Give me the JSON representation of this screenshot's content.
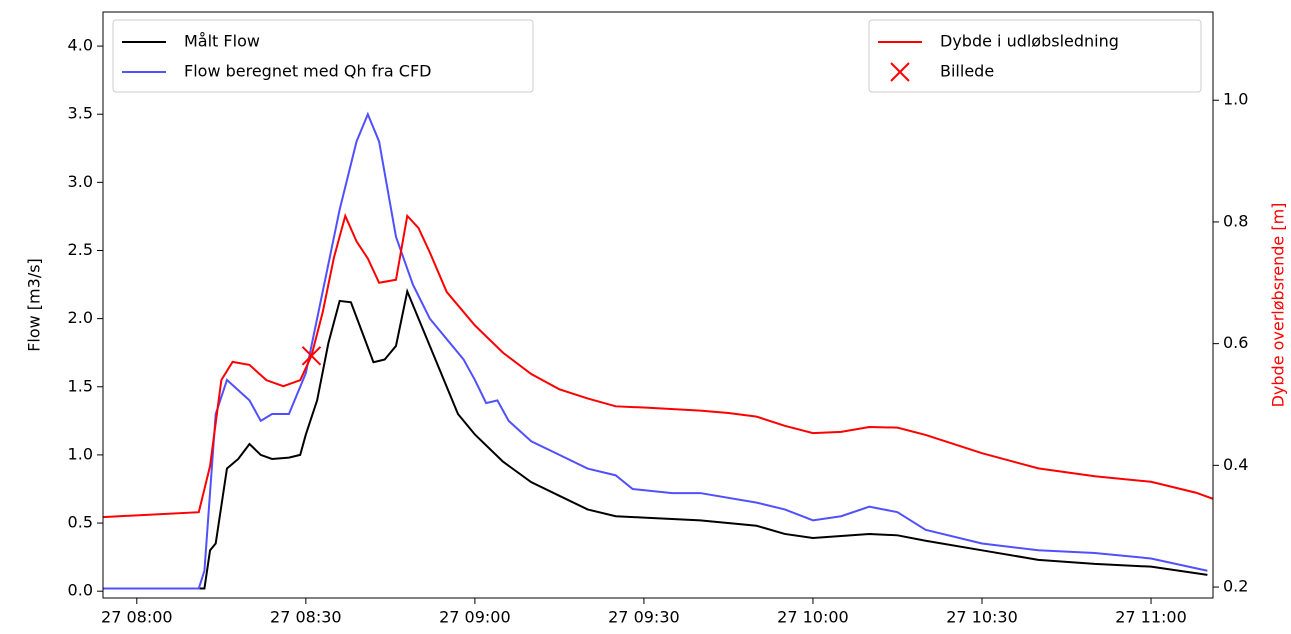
{
  "chart_data": {
    "type": "line",
    "ylabel": "Flow [m3/s]",
    "y2label": "Dybde overløbsrende [m]",
    "xlim": [
      "27 07:54",
      "27 11:11"
    ],
    "xticks": [
      "27 08:00",
      "27 08:30",
      "27 09:00",
      "27 09:30",
      "27 10:00",
      "27 10:30",
      "27 11:00"
    ],
    "ylim": [
      -0.05,
      4.25
    ],
    "yticks": [
      {
        "value": 0,
        "label": "0.0"
      },
      {
        "value": 0.5,
        "label": "0.5"
      },
      {
        "value": 1,
        "label": "1.0"
      },
      {
        "value": 1.5,
        "label": "1.5"
      },
      {
        "value": 2,
        "label": "2.0"
      },
      {
        "value": 2.5,
        "label": "2.5"
      },
      {
        "value": 3,
        "label": "3.0"
      },
      {
        "value": 3.5,
        "label": "3.5"
      },
      {
        "value": 4,
        "label": "4.0"
      }
    ],
    "y2lim": [
      0.182,
      1.145
    ],
    "y2ticks": [
      0.2,
      0.4,
      0.6,
      0.8,
      {
        "value": 1,
        "label": "1.0"
      }
    ],
    "y2color": "#ff0000",
    "legend": {
      "y": "upper left",
      "y2": "upper right"
    },
    "series": [
      {
        "name": "Målt Flow",
        "color": "#000000",
        "axis": "y",
        "x": [
          "27 07:54",
          "27 08:12",
          "27 08:13",
          "27 08:14",
          "27 08:16",
          "27 08:18",
          "27 08:20",
          "27 08:22",
          "27 08:24",
          "27 08:27",
          "27 08:29",
          "27 08:30",
          "27 08:32",
          "27 08:34",
          "27 08:36",
          "27 08:38",
          "27 08:40",
          "27 08:42",
          "27 08:44",
          "27 08:46",
          "27 08:48",
          "27 08:50",
          "27 08:52",
          "27 08:54",
          "27 08:57",
          "27 09:00",
          "27 09:05",
          "27 09:10",
          "27 09:15",
          "27 09:20",
          "27 09:25",
          "27 09:30",
          "27 09:40",
          "27 09:50",
          "27 09:55",
          "27 10:00",
          "27 10:10",
          "27 10:15",
          "27 10:20",
          "27 10:30",
          "27 10:40",
          "27 10:50",
          "27 11:00",
          "27 11:10"
        ],
        "values": [
          0.02,
          0.02,
          0.3,
          0.35,
          0.9,
          0.97,
          1.08,
          1.0,
          0.97,
          0.98,
          1.0,
          1.15,
          1.4,
          1.82,
          2.13,
          2.12,
          1.9,
          1.68,
          1.7,
          1.8,
          2.2,
          2.0,
          1.8,
          1.6,
          1.3,
          1.15,
          0.95,
          0.8,
          0.7,
          0.6,
          0.55,
          0.54,
          0.52,
          0.48,
          0.42,
          0.39,
          0.42,
          0.41,
          0.37,
          0.3,
          0.23,
          0.2,
          0.18,
          0.12
        ]
      },
      {
        "name": "Flow beregnet med Qh fra CFD",
        "color": "#5050ff",
        "axis": "y",
        "x": [
          "27 07:54",
          "27 08:11",
          "27 08:12",
          "27 08:14",
          "27 08:16",
          "27 08:20",
          "27 08:22",
          "27 08:24",
          "27 08:27",
          "27 08:30",
          "27 08:33",
          "27 08:36",
          "27 08:39",
          "27 08:41",
          "27 08:43",
          "27 08:46",
          "27 08:49",
          "27 08:52",
          "27 08:55",
          "27 08:58",
          "27 09:00",
          "27 09:02",
          "27 09:04",
          "27 09:06",
          "27 09:10",
          "27 09:15",
          "27 09:20",
          "27 09:25",
          "27 09:28",
          "27 09:35",
          "27 09:40",
          "27 09:50",
          "27 09:55",
          "27 10:00",
          "27 10:05",
          "27 10:10",
          "27 10:15",
          "27 10:20",
          "27 10:30",
          "27 10:40",
          "27 10:50",
          "27 11:00",
          "27 11:10"
        ],
        "values": [
          0.02,
          0.02,
          0.15,
          1.3,
          1.55,
          1.4,
          1.25,
          1.3,
          1.3,
          1.6,
          2.2,
          2.8,
          3.3,
          3.5,
          3.3,
          2.6,
          2.25,
          2.0,
          1.85,
          1.7,
          1.55,
          1.38,
          1.4,
          1.25,
          1.1,
          1.0,
          0.9,
          0.85,
          0.75,
          0.72,
          0.72,
          0.65,
          0.6,
          0.52,
          0.55,
          0.62,
          0.58,
          0.45,
          0.35,
          0.3,
          0.28,
          0.24,
          0.15
        ]
      },
      {
        "name": "Dybde i udløbsledning",
        "color": "#ff0000",
        "axis": "y2",
        "x": [
          "27 07:54",
          "27 08:11",
          "27 08:13",
          "27 08:15",
          "27 08:17",
          "27 08:20",
          "27 08:23",
          "27 08:26",
          "27 08:29",
          "27 08:31",
          "27 08:33",
          "27 08:35",
          "27 08:37",
          "27 08:39",
          "27 08:41",
          "27 08:43",
          "27 08:46",
          "27 08:48",
          "27 08:50",
          "27 08:52",
          "27 08:55",
          "27 09:00",
          "27 09:05",
          "27 09:10",
          "27 09:15",
          "27 09:20",
          "27 09:25",
          "27 09:30",
          "27 09:40",
          "27 09:45",
          "27 09:50",
          "27 09:55",
          "27 10:00",
          "27 10:05",
          "27 10:10",
          "27 10:15",
          "27 10:20",
          "27 10:30",
          "27 10:40",
          "27 10:50",
          "27 11:00",
          "27 11:08",
          "27 11:11"
        ],
        "values": [
          0.315,
          0.323,
          0.399,
          0.54,
          0.57,
          0.565,
          0.54,
          0.53,
          0.54,
          0.58,
          0.652,
          0.742,
          0.81,
          0.768,
          0.74,
          0.7,
          0.705,
          0.81,
          0.79,
          0.75,
          0.685,
          0.63,
          0.585,
          0.55,
          0.525,
          0.51,
          0.497,
          0.495,
          0.49,
          0.486,
          0.48,
          0.465,
          0.453,
          0.455,
          0.463,
          0.462,
          0.45,
          0.42,
          0.395,
          0.382,
          0.373,
          0.355,
          0.345
        ]
      },
      {
        "name": "Billede",
        "color": "#ff0000",
        "axis": "y2",
        "marker": "x",
        "x": [
          "27 08:31"
        ],
        "values": [
          0.58
        ]
      }
    ]
  }
}
